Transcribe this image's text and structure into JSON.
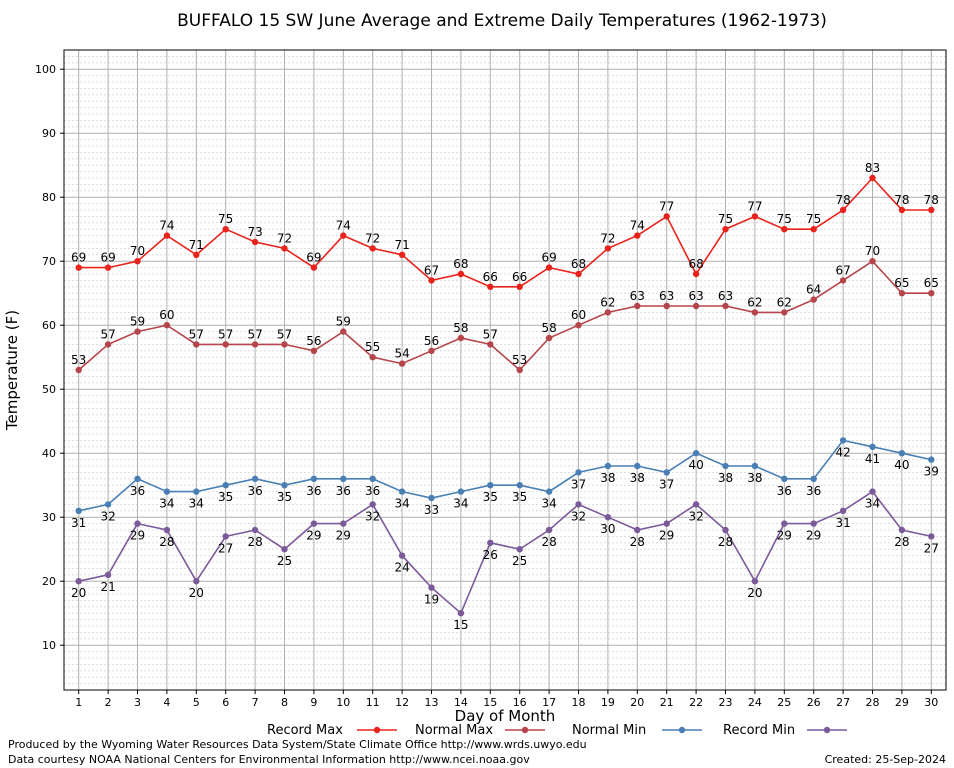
{
  "chart_data": {
    "type": "line",
    "title": "BUFFALO 15 SW June Average and Extreme Daily Temperatures (1962-1973)",
    "xlabel": "Day of Month",
    "ylabel": "Temperature (F)",
    "x": [
      1,
      2,
      3,
      4,
      5,
      6,
      7,
      8,
      9,
      10,
      11,
      12,
      13,
      14,
      15,
      16,
      17,
      18,
      19,
      20,
      21,
      22,
      23,
      24,
      25,
      26,
      27,
      28,
      29,
      30
    ],
    "xlim": [
      0.5,
      30.5
    ],
    "ylim": [
      3,
      103
    ],
    "yticks": [
      10,
      20,
      30,
      40,
      50,
      60,
      70,
      80,
      90,
      100
    ],
    "grid": true,
    "legend": "bottom",
    "series": [
      {
        "name": "Record Max",
        "color": "#e8231c",
        "values": [
          69,
          69,
          70,
          74,
          71,
          75,
          73,
          72,
          69,
          74,
          72,
          71,
          67,
          68,
          66,
          66,
          69,
          68,
          72,
          74,
          77,
          68,
          75,
          77,
          75,
          75,
          78,
          83,
          78,
          78
        ]
      },
      {
        "name": "Normal Max",
        "color": "#b5454a",
        "values": [
          53,
          57,
          59,
          60,
          57,
          57,
          57,
          57,
          56,
          59,
          55,
          54,
          56,
          58,
          57,
          53,
          58,
          60,
          62,
          63,
          63,
          63,
          63,
          62,
          62,
          64,
          67,
          70,
          65,
          65
        ]
      },
      {
        "name": "Normal Min",
        "color": "#4a7fb5",
        "values": [
          31,
          32,
          36,
          34,
          34,
          35,
          36,
          35,
          36,
          36,
          36,
          34,
          33,
          34,
          35,
          35,
          34,
          37,
          38,
          38,
          37,
          40,
          38,
          38,
          36,
          36,
          42,
          41,
          40,
          39
        ]
      },
      {
        "name": "Record Min",
        "color": "#7b5a9a",
        "values": [
          20,
          21,
          29,
          28,
          20,
          27,
          28,
          25,
          29,
          29,
          32,
          24,
          19,
          15,
          26,
          25,
          28,
          32,
          30,
          28,
          29,
          32,
          28,
          20,
          29,
          29,
          31,
          34,
          28,
          27
        ]
      }
    ]
  },
  "footer": {
    "produced_by": "Produced by the Wyoming Water Resources Data System/State Climate Office http://www.wrds.uwyo.edu",
    "courtesy": "Data courtesy NOAA National Centers for Environmental Information http://www.ncei.noaa.gov",
    "created": "Created:  25-Sep-2024"
  }
}
